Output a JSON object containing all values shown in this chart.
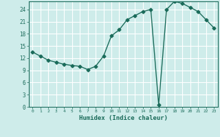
{
  "x": [
    0,
    1,
    2,
    3,
    4,
    5,
    6,
    7,
    8,
    9,
    10,
    11,
    12,
    13,
    14,
    15,
    16,
    17,
    18,
    19,
    20,
    21,
    22,
    23
  ],
  "y": [
    13.5,
    12.5,
    11.5,
    11.0,
    10.5,
    10.2,
    10.0,
    9.2,
    10.0,
    12.5,
    17.5,
    19.0,
    21.5,
    22.5,
    23.5,
    24.0,
    0.5,
    24.0,
    26.0,
    25.5,
    24.5,
    23.5,
    21.5,
    19.5
  ],
  "xlabel": "Humidex (Indice chaleur)",
  "xlim": [
    -0.5,
    23.5
  ],
  "ylim": [
    0,
    26
  ],
  "yticks": [
    0,
    3,
    6,
    9,
    12,
    15,
    18,
    21,
    24
  ],
  "xticks": [
    0,
    1,
    2,
    3,
    4,
    5,
    6,
    7,
    8,
    9,
    10,
    11,
    12,
    13,
    14,
    15,
    16,
    17,
    18,
    19,
    20,
    21,
    22,
    23
  ],
  "line_color": "#1a6b5a",
  "marker": "D",
  "marker_size": 2.5,
  "bg_color": "#ceecea",
  "grid_color": "#ffffff",
  "axis_color": "#1a6b5a",
  "tick_label_color": "#1a6b5a",
  "xlabel_color": "#1a6b5a",
  "line_width": 1.0
}
